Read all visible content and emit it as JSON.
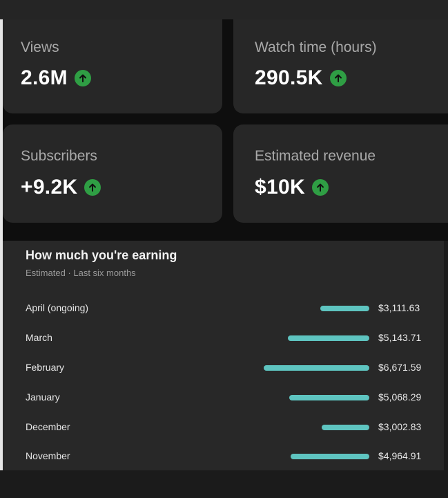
{
  "stats": [
    {
      "label": "Views",
      "value": "2.6M",
      "trend_icon": "arrow-up-circle-icon",
      "trend_color": "#2f9e44"
    },
    {
      "label": "Watch time (hours)",
      "value": "290.5K",
      "trend_icon": "arrow-up-circle-icon",
      "trend_color": "#2f9e44"
    },
    {
      "label": "Subscribers",
      "value": "+9.2K",
      "trend_icon": "arrow-up-circle-icon",
      "trend_color": "#2f9e44"
    },
    {
      "label": "Estimated revenue",
      "value": "$10K",
      "trend_icon": "arrow-up-circle-icon",
      "trend_color": "#2f9e44"
    }
  ],
  "earnings": {
    "title": "How much you're earning",
    "subtitle": "Estimated · Last six months",
    "bar_color": "#5ec4c0",
    "rows": [
      {
        "month": "April (ongoing)",
        "amount": "$3,111.63",
        "value": 3111.63
      },
      {
        "month": "March",
        "amount": "$5,143.71",
        "value": 5143.71
      },
      {
        "month": "February",
        "amount": "$6,671.59",
        "value": 6671.59
      },
      {
        "month": "January",
        "amount": "$5,068.29",
        "value": 5068.29
      },
      {
        "month": "December",
        "amount": "$3,002.83",
        "value": 3002.83
      },
      {
        "month": "November",
        "amount": "$4,964.91",
        "value": 4964.91
      }
    ]
  }
}
